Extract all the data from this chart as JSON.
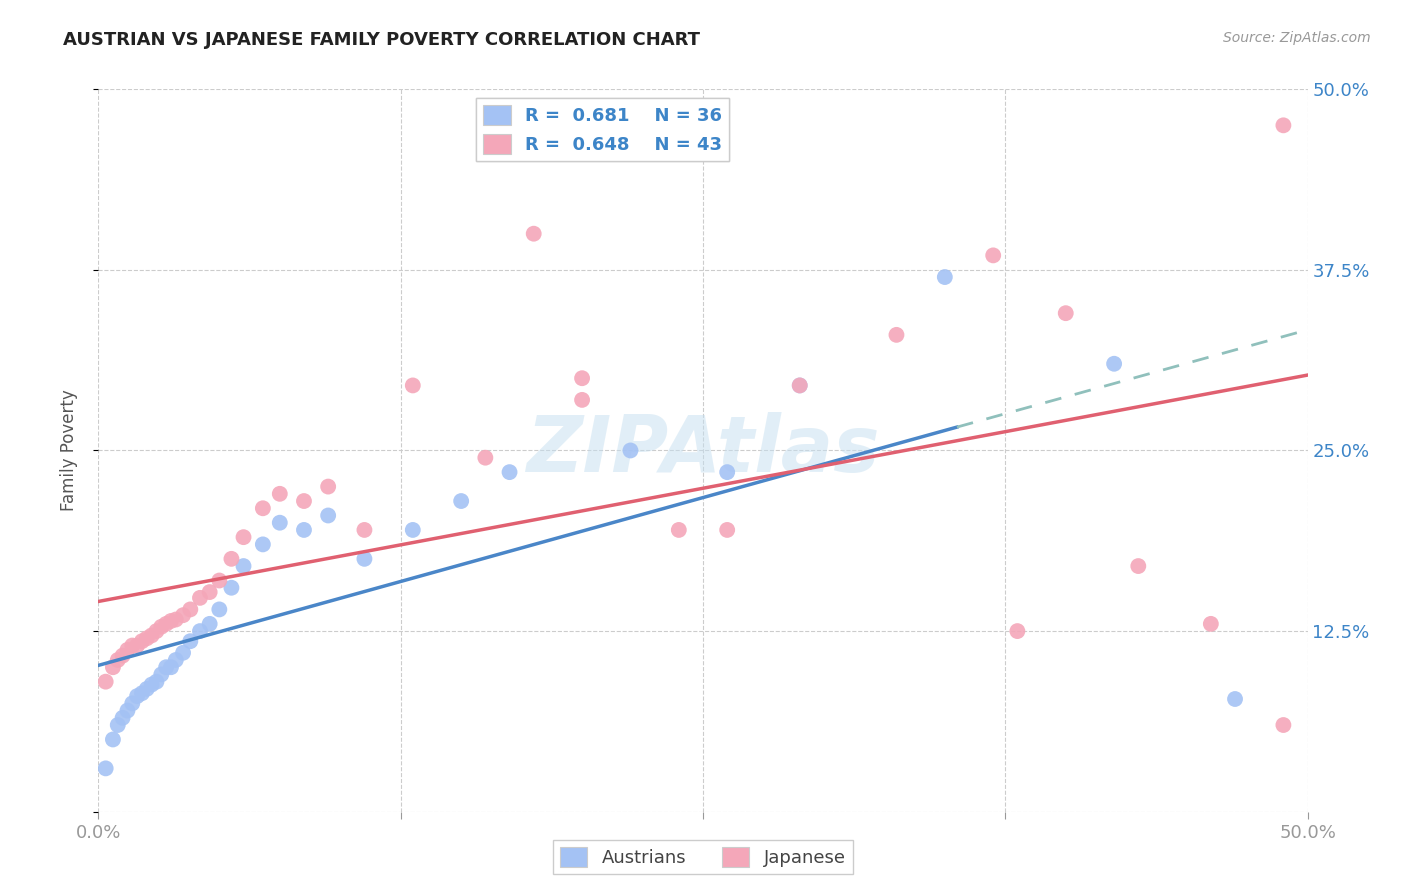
{
  "title": "AUSTRIAN VS JAPANESE FAMILY POVERTY CORRELATION CHART",
  "source": "Source: ZipAtlas.com",
  "ylabel": "Family Poverty",
  "xlim": [
    0.0,
    0.5
  ],
  "ylim": [
    0.0,
    0.5
  ],
  "xticks": [
    0.0,
    0.125,
    0.25,
    0.375,
    0.5
  ],
  "yticks": [
    0.0,
    0.125,
    0.25,
    0.375,
    0.5
  ],
  "xticklabels": [
    "0.0%",
    "",
    "",
    "",
    "50.0%"
  ],
  "yticklabels_right": [
    "",
    "12.5%",
    "25.0%",
    "37.5%",
    "50.0%"
  ],
  "blue_color": "#a4c2f4",
  "pink_color": "#f4a7b9",
  "blue_line_color": "#4a86c8",
  "pink_line_color": "#e06070",
  "dashed_line_color": "#90c0bc",
  "legend_text_color": "#3d85c8",
  "R_austrians": 0.681,
  "N_austrians": 36,
  "R_japanese": 0.648,
  "N_japanese": 43,
  "background_color": "#ffffff",
  "grid_color": "#cccccc",
  "austrians_x": [
    0.003,
    0.006,
    0.008,
    0.01,
    0.012,
    0.014,
    0.016,
    0.018,
    0.02,
    0.022,
    0.024,
    0.026,
    0.028,
    0.03,
    0.032,
    0.035,
    0.038,
    0.042,
    0.046,
    0.05,
    0.055,
    0.06,
    0.068,
    0.075,
    0.085,
    0.095,
    0.11,
    0.13,
    0.15,
    0.17,
    0.22,
    0.26,
    0.29,
    0.35,
    0.42,
    0.47
  ],
  "austrians_y": [
    0.03,
    0.05,
    0.06,
    0.065,
    0.07,
    0.075,
    0.08,
    0.082,
    0.085,
    0.088,
    0.09,
    0.095,
    0.1,
    0.1,
    0.105,
    0.11,
    0.118,
    0.125,
    0.13,
    0.14,
    0.155,
    0.17,
    0.185,
    0.2,
    0.195,
    0.205,
    0.175,
    0.195,
    0.215,
    0.235,
    0.25,
    0.235,
    0.295,
    0.37,
    0.31,
    0.078
  ],
  "japanese_x": [
    0.003,
    0.006,
    0.008,
    0.01,
    0.012,
    0.014,
    0.016,
    0.018,
    0.02,
    0.022,
    0.024,
    0.026,
    0.028,
    0.03,
    0.032,
    0.035,
    0.038,
    0.042,
    0.046,
    0.05,
    0.055,
    0.06,
    0.068,
    0.075,
    0.085,
    0.095,
    0.11,
    0.13,
    0.16,
    0.2,
    0.24,
    0.29,
    0.33,
    0.37,
    0.4,
    0.43,
    0.46,
    0.49,
    0.18,
    0.2,
    0.26,
    0.38,
    0.49
  ],
  "japanese_y": [
    0.09,
    0.1,
    0.105,
    0.108,
    0.112,
    0.115,
    0.115,
    0.118,
    0.12,
    0.122,
    0.125,
    0.128,
    0.13,
    0.132,
    0.133,
    0.136,
    0.14,
    0.148,
    0.152,
    0.16,
    0.175,
    0.19,
    0.21,
    0.22,
    0.215,
    0.225,
    0.195,
    0.295,
    0.245,
    0.3,
    0.195,
    0.295,
    0.33,
    0.385,
    0.345,
    0.17,
    0.13,
    0.475,
    0.4,
    0.285,
    0.195,
    0.125,
    0.06
  ]
}
